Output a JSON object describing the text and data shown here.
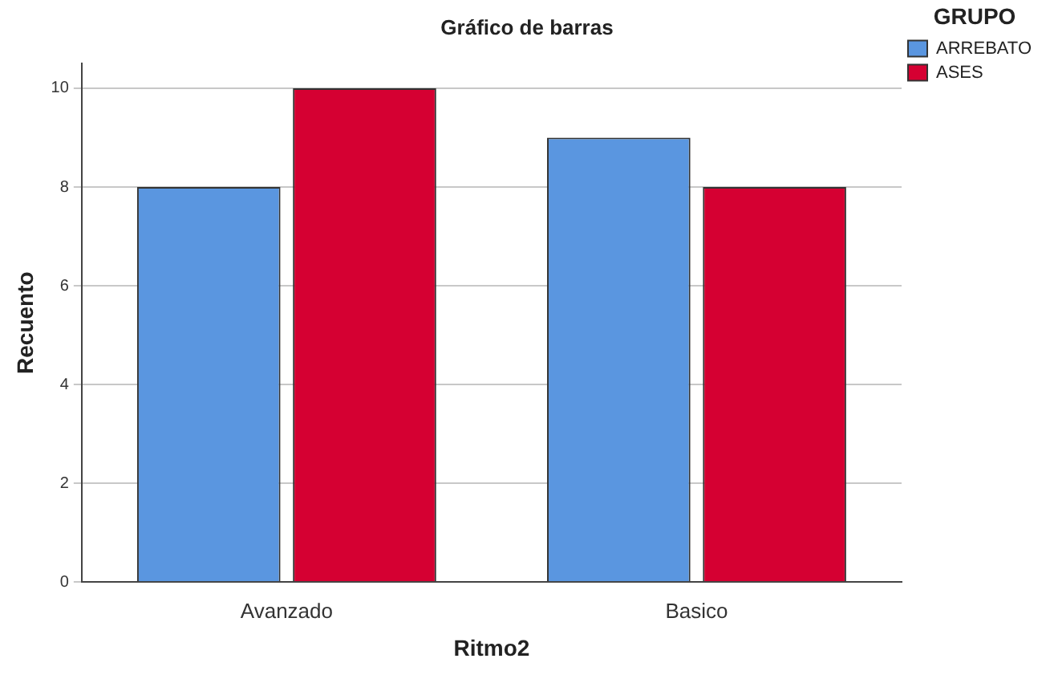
{
  "chart_data": {
    "type": "bar",
    "title": "Gráfico de barras",
    "xlabel": "Ritmo2",
    "ylabel": "Recuento",
    "legend_title": "GRUPO",
    "categories": [
      "Avanzado",
      "Basico"
    ],
    "series": [
      {
        "name": "ARREBATO",
        "color": "#5a96e0",
        "values": [
          8,
          9
        ]
      },
      {
        "name": "ASES",
        "color": "#d50032",
        "values": [
          10,
          8
        ]
      }
    ],
    "ylim": [
      0,
      10.5
    ],
    "yticks": [
      0,
      2,
      4,
      6,
      8,
      10
    ],
    "grid": "y",
    "legend": "top right"
  }
}
